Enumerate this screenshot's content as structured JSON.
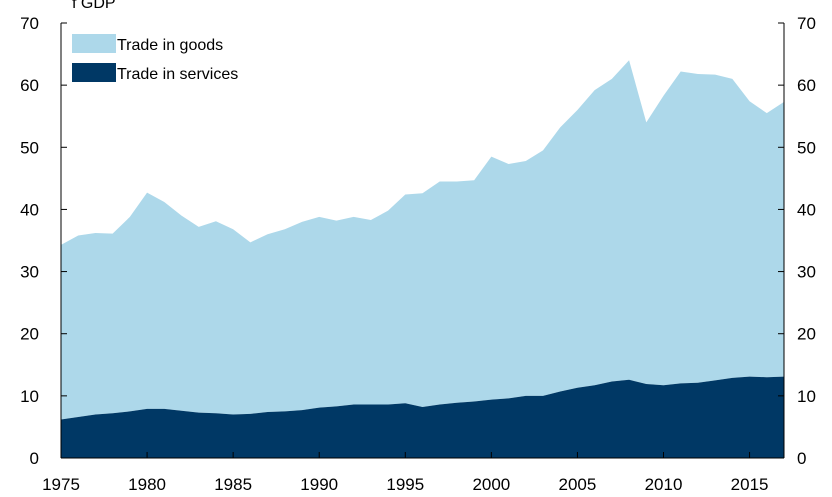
{
  "chart_data": {
    "type": "area",
    "stacked": true,
    "title": "",
    "xlabel": "",
    "ylabel": "",
    "xlim": [
      1975,
      2017
    ],
    "ylim": [
      0,
      70
    ],
    "y_ticks": [
      0,
      10,
      20,
      30,
      40,
      50,
      60,
      70
    ],
    "x_ticks": [
      1975,
      1980,
      1985,
      1990,
      1995,
      2000,
      2005,
      2010,
      2015
    ],
    "right_axis": true,
    "grid": false,
    "legend_position": "top-left",
    "x": [
      1975,
      1976,
      1977,
      1978,
      1979,
      1980,
      1981,
      1982,
      1983,
      1984,
      1985,
      1986,
      1987,
      1988,
      1989,
      1990,
      1991,
      1992,
      1993,
      1994,
      1995,
      1996,
      1997,
      1998,
      1999,
      2000,
      2001,
      2002,
      2003,
      2004,
      2005,
      2006,
      2007,
      2008,
      2009,
      2010,
      2011,
      2012,
      2013,
      2014,
      2015,
      2016,
      2017
    ],
    "series": [
      {
        "name": "Trade in services",
        "color": "#003865",
        "values": [
          6.2,
          6.6,
          7.0,
          7.2,
          7.5,
          7.9,
          7.9,
          7.6,
          7.3,
          7.2,
          7.0,
          7.1,
          7.4,
          7.5,
          7.7,
          8.1,
          8.3,
          8.6,
          8.6,
          8.6,
          8.8,
          8.2,
          8.6,
          8.9,
          9.1,
          9.4,
          9.6,
          10.0,
          10.0,
          10.7,
          11.3,
          11.7,
          12.3,
          12.6,
          11.9,
          11.7,
          12.0,
          12.1,
          12.5,
          12.9,
          13.1,
          13.0,
          13.1
        ]
      },
      {
        "name": "Trade in goods",
        "color": "#add8ea",
        "totals": [
          34.3,
          35.8,
          36.2,
          36.1,
          38.8,
          42.7,
          41.2,
          39.0,
          37.2,
          38.1,
          36.8,
          34.7,
          36.0,
          36.8,
          38.0,
          38.8,
          38.2,
          38.8,
          38.3,
          39.8,
          42.4,
          42.6,
          44.5,
          44.5,
          44.7,
          48.5,
          47.3,
          47.8,
          49.5,
          53.2,
          56.0,
          59.2,
          61.0,
          64.0,
          54.0,
          58.3,
          62.2,
          61.8,
          61.7,
          61.0,
          57.4,
          55.5,
          57.3
        ],
        "values": [
          28.1,
          29.2,
          29.2,
          28.9,
          31.3,
          34.8,
          33.3,
          31.4,
          29.9,
          30.9,
          29.8,
          27.6,
          28.6,
          29.3,
          30.3,
          30.7,
          29.9,
          30.2,
          29.7,
          31.2,
          33.6,
          34.4,
          35.9,
          35.6,
          35.6,
          39.1,
          37.7,
          37.8,
          39.5,
          42.5,
          44.7,
          47.5,
          48.7,
          51.4,
          42.1,
          46.6,
          50.2,
          49.7,
          49.2,
          48.1,
          44.3,
          42.5,
          44.2
        ]
      }
    ],
    "legend": [
      {
        "label": "Trade in goods",
        "color": "#add8ea"
      },
      {
        "label": "Trade in services",
        "color": "#003865"
      }
    ],
    "top_fragment": "f GDP"
  }
}
